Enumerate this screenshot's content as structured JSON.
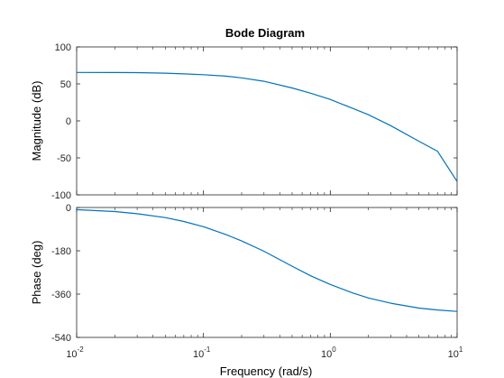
{
  "chart_data": {
    "type": "line",
    "title": "Bode Diagram",
    "xlabel": "Frequency  (rad/s)",
    "xscale": "log",
    "xlim": [
      0.01,
      10
    ],
    "x_ticks": [
      0.01,
      0.1,
      1,
      10
    ],
    "x_tick_labels": [
      {
        "base": "10",
        "exp": "-2"
      },
      {
        "base": "10",
        "exp": "-1"
      },
      {
        "base": "10",
        "exp": "0"
      },
      {
        "base": "10",
        "exp": "1"
      }
    ],
    "line_color": "#0072BD",
    "axes_color": "#262626",
    "panels": [
      {
        "id": "magnitude",
        "ylabel": "Magnitude (dB)",
        "ylim": [
          -100,
          100
        ],
        "yticks": [
          -100,
          -50,
          0,
          50,
          100
        ],
        "ytick_labels": [
          "-100",
          "-50",
          "0",
          "50",
          "100"
        ],
        "series": {
          "x": [
            0.01,
            0.02,
            0.03,
            0.05,
            0.07,
            0.1,
            0.15,
            0.2,
            0.3,
            0.5,
            0.7,
            1,
            1.5,
            2,
            3,
            5,
            7,
            10
          ],
          "y": [
            65.5,
            65.4,
            65.2,
            64.5,
            63.5,
            62.5,
            60.5,
            58.2,
            53.5,
            44.5,
            37.5,
            29,
            17,
            8.3,
            -6.5,
            -27.5,
            -41,
            -82
          ]
        }
      },
      {
        "id": "phase",
        "ylabel": "Phase (deg)",
        "ylim": [
          -540,
          0
        ],
        "yticks": [
          -540,
          -360,
          -180,
          0
        ],
        "ytick_labels": [
          "-540",
          "-360",
          "-180",
          "0"
        ],
        "series": {
          "x": [
            0.01,
            0.02,
            0.03,
            0.05,
            0.07,
            0.1,
            0.15,
            0.2,
            0.3,
            0.5,
            0.7,
            1,
            1.5,
            2,
            3,
            5,
            7,
            10
          ],
          "y": [
            -9,
            -17,
            -26,
            -42,
            -58,
            -80,
            -112,
            -139,
            -182,
            -244,
            -284,
            -320,
            -355,
            -376,
            -398,
            -418,
            -426,
            -432
          ]
        }
      }
    ]
  }
}
